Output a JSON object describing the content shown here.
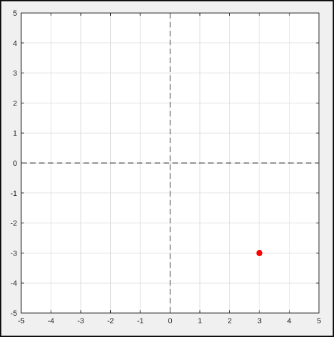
{
  "chart_data": {
    "type": "scatter",
    "title": "",
    "xlabel": "",
    "ylabel": "",
    "xlim": [
      -5,
      5
    ],
    "ylim": [
      -5,
      5
    ],
    "xticks": [
      -5,
      -4,
      -3,
      -2,
      -1,
      0,
      1,
      2,
      3,
      4,
      5
    ],
    "yticks": [
      -5,
      -4,
      -3,
      -2,
      -1,
      0,
      1,
      2,
      3,
      4,
      5
    ],
    "grid": true,
    "reference_lines": [
      {
        "axis": "x",
        "value": 0,
        "style": "dashed"
      },
      {
        "axis": "y",
        "value": 0,
        "style": "dashed"
      }
    ],
    "series": [
      {
        "points": [
          {
            "x": 3,
            "y": -3
          }
        ],
        "color": "#ff0000",
        "marker": "filled-circle"
      }
    ]
  },
  "colors": {
    "grid": "#dfdfdf",
    "axes_box": "#262626",
    "reference_line": "#262626",
    "figure_background": "#f0f0f0",
    "plot_background": "#ffffff"
  }
}
